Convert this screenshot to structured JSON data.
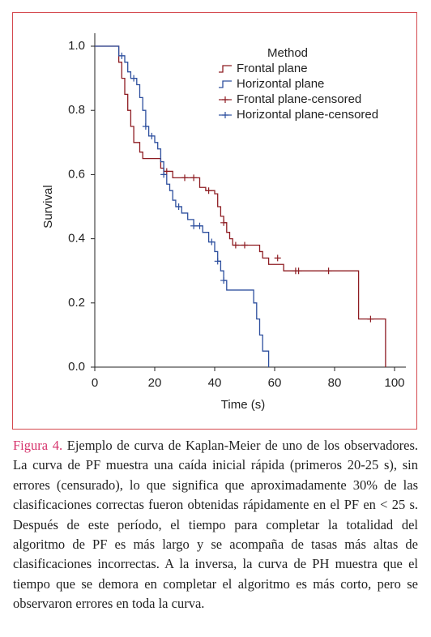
{
  "chart_data": {
    "type": "line",
    "xlabel": "Time (s)",
    "ylabel": "Survival",
    "legend_title": "Method",
    "legend": "upper right",
    "xlim": [
      0,
      100
    ],
    "ylim": [
      0,
      1
    ],
    "xticks": [
      0,
      20,
      40,
      60,
      80,
      100
    ],
    "yticks": [
      {
        "value": 0,
        "label": "0.0"
      },
      0.2,
      0.4,
      0.6,
      0.8,
      {
        "value": 1,
        "label": "1.0"
      }
    ],
    "series": [
      {
        "name": "Frontal plane",
        "color": "#8e1c22",
        "drawstyle": "steps-post",
        "x": [
          0,
          8,
          9,
          10,
          11,
          12,
          13,
          15,
          16,
          22,
          23,
          26,
          35,
          37,
          40,
          41,
          42,
          43,
          44,
          45,
          46,
          55,
          56,
          58,
          63,
          88,
          97
        ],
        "values": [
          1.0,
          0.95,
          0.9,
          0.85,
          0.8,
          0.75,
          0.7,
          0.67,
          0.65,
          0.62,
          0.61,
          0.59,
          0.56,
          0.55,
          0.54,
          0.5,
          0.47,
          0.45,
          0.42,
          0.4,
          0.38,
          0.36,
          0.34,
          0.32,
          0.3,
          0.15,
          0.0
        ]
      },
      {
        "name": "Horizontal plane",
        "color": "#2d4f9e",
        "drawstyle": "steps-post",
        "x": [
          0,
          8,
          10,
          11,
          12,
          14,
          15,
          16,
          17,
          18,
          20,
          21,
          22,
          23,
          24,
          25,
          26,
          27,
          29,
          31,
          33,
          36,
          38,
          40,
          41,
          42,
          43,
          44,
          53,
          54,
          55,
          56,
          58
        ],
        "values": [
          1.0,
          0.97,
          0.95,
          0.92,
          0.9,
          0.88,
          0.84,
          0.8,
          0.75,
          0.72,
          0.7,
          0.68,
          0.64,
          0.6,
          0.57,
          0.55,
          0.52,
          0.5,
          0.48,
          0.46,
          0.44,
          0.42,
          0.39,
          0.36,
          0.33,
          0.3,
          0.27,
          0.24,
          0.2,
          0.15,
          0.1,
          0.05,
          0.0
        ]
      },
      {
        "name": "Frontal plane-censored",
        "color": "#8e1c22",
        "marker": "+",
        "x": [
          24,
          30,
          33,
          38,
          43,
          47,
          50,
          61,
          67,
          68,
          78,
          92
        ],
        "values": [
          0.61,
          0.59,
          0.59,
          0.55,
          0.45,
          0.38,
          0.38,
          0.34,
          0.3,
          0.3,
          0.3,
          0.15
        ]
      },
      {
        "name": "Horizontal plane-censored",
        "color": "#2d4f9e",
        "marker": "+",
        "x": [
          9,
          13,
          17,
          19,
          23,
          28,
          33,
          35,
          39,
          41,
          43
        ],
        "values": [
          0.97,
          0.9,
          0.75,
          0.72,
          0.6,
          0.5,
          0.44,
          0.44,
          0.39,
          0.33,
          0.27
        ]
      }
    ]
  },
  "caption": {
    "label": "Figura 4.",
    "text": "Ejemplo de curva de Kaplan-Meier de uno de los observadores. La curva de PF muestra una caída inicial rápida (primeros 20-25 s), sin errores (censurado), lo que significa que aproximadamente 30% de las clasificaciones correctas fueron obtenidas rápidamente en el PF en < 25 s. Después de este período, el tiempo para completar la totalidad del algoritmo de PF es más largo y se acompaña de tasas más altas de clasificaciones incorrectas. A la inversa, la curva de PH muestra que el tiempo que se demora en completar el algoritmo es más corto, pero se observaron errores en toda la curva."
  }
}
